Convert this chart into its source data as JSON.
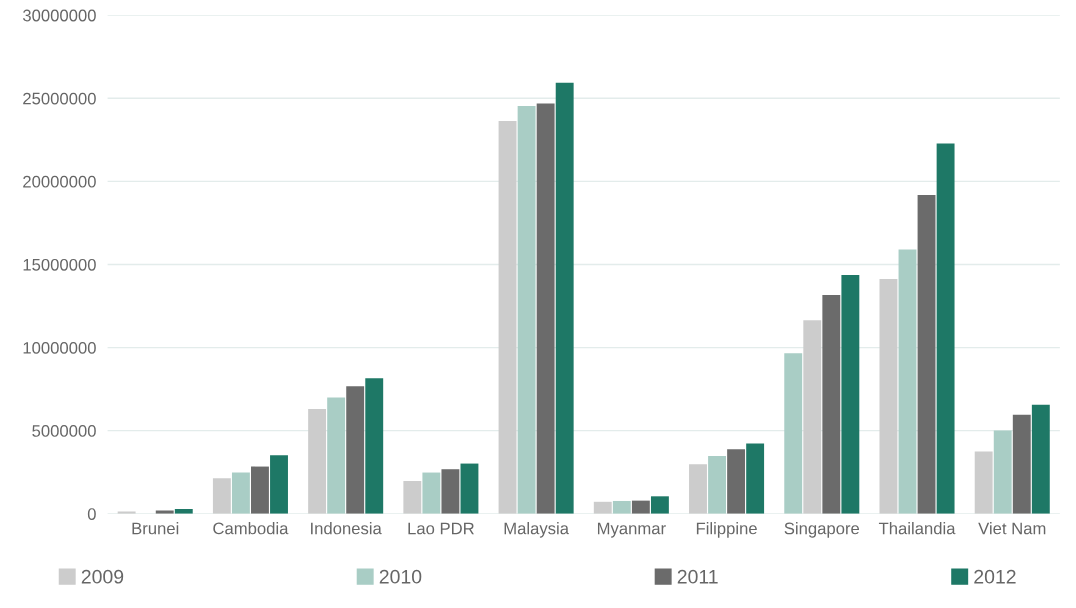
{
  "chart_data": {
    "type": "bar",
    "categories": [
      "Brunei",
      "Cambodia",
      "Indonesia",
      "Lao PDR",
      "Malaysia",
      "Myanmar",
      "Filippine",
      "Singapore",
      "Thailandia",
      "Viet Nam"
    ],
    "series": [
      {
        "name": "2009",
        "color": "#cccccc",
        "colors": [
          "#cccccc",
          "#cccccc",
          "#cccccc",
          "#cccccc",
          "#cccccc",
          "#cccccc",
          "#cccccc",
          "#a9cdc5",
          "#cccccc",
          "#cccccc"
        ],
        "values": [
          140000,
          2130000,
          6300000,
          1970000,
          23630000,
          720000,
          2980000,
          9660000,
          14130000,
          3740000
        ]
      },
      {
        "name": "2010",
        "color": "#a9cdc5",
        "colors": [
          "#a9cdc5",
          "#a9cdc5",
          "#a9cdc5",
          "#a9cdc5",
          "#a9cdc5",
          "#a9cdc5",
          "#a9cdc5",
          "#cccccc",
          "#a9cdc5",
          "#a9cdc5"
        ],
        "values": [
          null,
          2480000,
          7000000,
          2480000,
          24540000,
          770000,
          3480000,
          11640000,
          15900000,
          5010000
        ]
      },
      {
        "name": "2011",
        "color": "#6b6b6b",
        "values": [
          200000,
          2840000,
          7670000,
          2680000,
          24680000,
          790000,
          3880000,
          13160000,
          19180000,
          5960000
        ]
      },
      {
        "name": "2012",
        "color": "#1e7866",
        "values": [
          280000,
          3520000,
          8150000,
          3020000,
          25930000,
          1050000,
          4230000,
          14360000,
          22280000,
          6560000
        ]
      }
    ],
    "ylim": [
      0,
      30000000
    ],
    "yticks": [
      0,
      5000000,
      10000000,
      15000000,
      20000000,
      25000000,
      30000000
    ],
    "grid": "y",
    "legend": "bottom"
  }
}
